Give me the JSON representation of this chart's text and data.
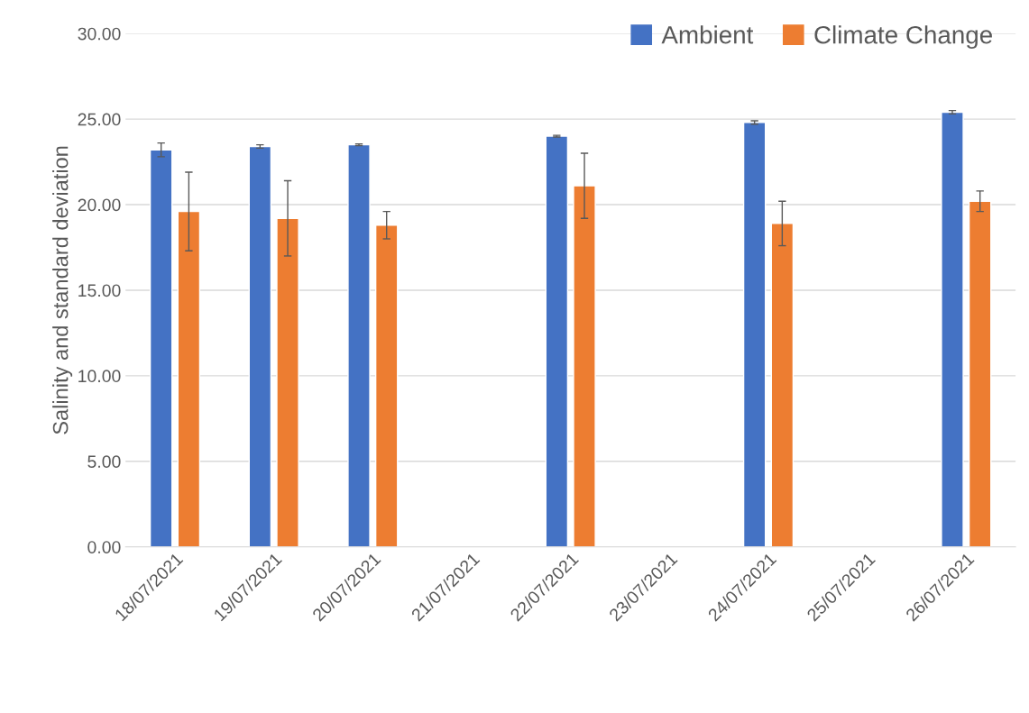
{
  "chart_data": {
    "type": "bar",
    "categories": [
      "18/07/2021",
      "19/07/2021",
      "20/07/2021",
      "21/07/2021",
      "22/07/2021",
      "23/07/2021",
      "24/07/2021",
      "25/07/2021",
      "26/07/2021"
    ],
    "series": [
      {
        "name": "Ambient",
        "color": "#4472c4",
        "values": [
          23.2,
          23.4,
          23.5,
          null,
          24.0,
          null,
          24.8,
          null,
          25.4
        ],
        "errors": [
          0.4,
          0.1,
          0.05,
          null,
          0.05,
          null,
          0.1,
          null,
          0.1
        ]
      },
      {
        "name": "Climate Change",
        "color": "#ed7d31",
        "values": [
          19.6,
          19.2,
          18.8,
          null,
          21.1,
          null,
          18.9,
          null,
          20.2
        ],
        "errors": [
          2.3,
          2.2,
          0.8,
          null,
          1.9,
          null,
          1.3,
          null,
          0.6
        ]
      }
    ],
    "ylabel": "Salinity and standard deviation",
    "ylim": [
      0,
      30
    ],
    "yticks": [
      {
        "value": 0,
        "label": "0.00"
      },
      {
        "value": 5,
        "label": "5.00"
      },
      {
        "value": 10,
        "label": "10.00"
      },
      {
        "value": 15,
        "label": "15.00"
      },
      {
        "value": 20,
        "label": "20.00"
      },
      {
        "value": 25,
        "label": "25.00"
      },
      {
        "value": 30,
        "label": "30.00"
      }
    ],
    "grid": "y",
    "legend": "top right"
  }
}
